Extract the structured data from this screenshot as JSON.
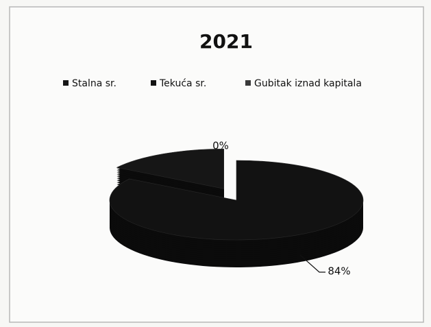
{
  "chart_data": {
    "type": "pie",
    "title": "2021",
    "categories": [
      "Stalna sr.",
      "Tekuća sr.",
      "Gubitak iznad kapitala"
    ],
    "values": [
      16,
      84,
      0
    ],
    "value_labels": [
      null,
      "84%",
      "0%"
    ],
    "colors": [
      "#161616",
      "#121212",
      "#3a3a3a"
    ],
    "legend": "top"
  }
}
